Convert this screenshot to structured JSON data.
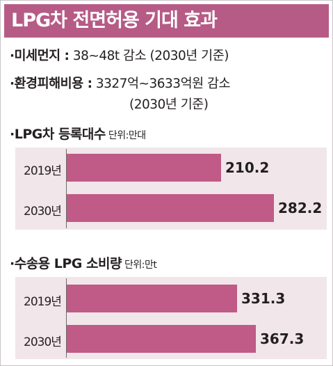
{
  "title": "LPG차 전면허용 기대 효과",
  "effects": [
    {
      "label": "·미세먼지 :",
      "value": "38∼48t 감소 (2030년 기준)"
    },
    {
      "label": "·환경피해비용 :",
      "value": "3327억∼3633억원 감소",
      "value2": "(2030년 기준)"
    }
  ],
  "chart_data": [
    {
      "type": "bar",
      "orientation": "horizontal",
      "title": "·LPG차 등록대수",
      "unit": "단위:만대",
      "categories": [
        "2019년",
        "2030년"
      ],
      "values": [
        210.2,
        282.2
      ],
      "value_labels": [
        "210.2",
        "282.2"
      ]
    },
    {
      "type": "bar",
      "orientation": "horizontal",
      "title": "·수송용 LPG 소비량",
      "unit": "단위:만t",
      "categories": [
        "2019년",
        "2030년"
      ],
      "values": [
        331.3,
        367.3
      ],
      "value_labels": [
        "331.3",
        "367.3"
      ]
    }
  ],
  "colors": {
    "accent": "#b65b86",
    "bar": "#c05a86",
    "panel": "#f1e6ea"
  }
}
